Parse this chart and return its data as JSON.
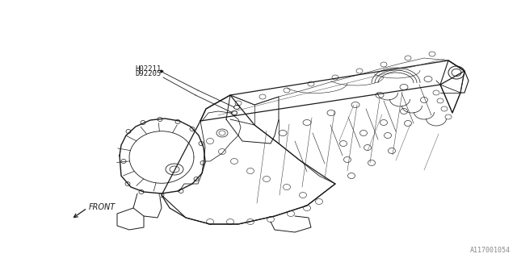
{
  "bg_color": "#ffffff",
  "line_color": "#1a1a1a",
  "gray_color": "#888888",
  "label1": "H02211",
  "label2": "D92205",
  "front_label": "FRONT",
  "part_number": "A117001054",
  "fig_width": 6.4,
  "fig_height": 3.2,
  "dpi": 100
}
